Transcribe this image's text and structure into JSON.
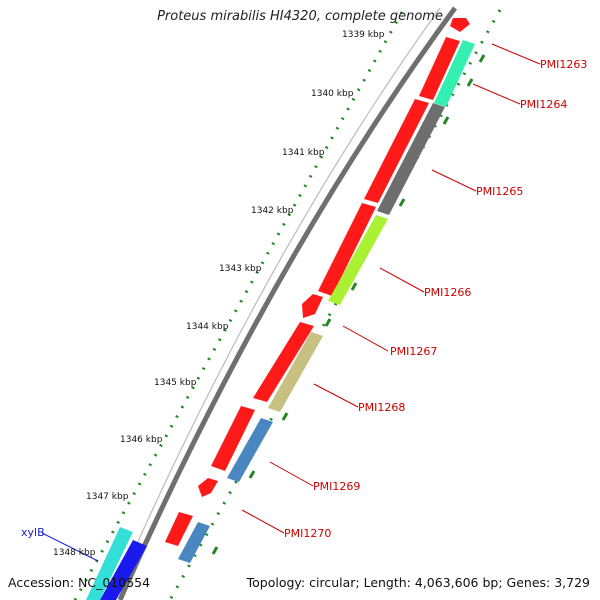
{
  "title": "Proteus mirabilis HI4320, complete genome",
  "footer": {
    "accession": "Accession: NC_010554",
    "topology": "Topology: circular; Length: 4,063,606 bp; Genes: 3,729"
  },
  "scale_ticks": [
    "1339 kbp",
    "1340 kbp",
    "1341 kbp",
    "1342 kbp",
    "1343 kbp",
    "1344 kbp",
    "1345 kbp",
    "1346 kbp",
    "1347 kbp",
    "1348 kbp"
  ],
  "gene_labels": [
    "PMI1263",
    "PMI1264",
    "PMI1265",
    "PMI1266",
    "PMI1267",
    "PMI1268",
    "PMI1269",
    "PMI1270",
    "xylB"
  ],
  "colors": {
    "cds": "#ff1a1a",
    "cog_teal": "#33f0b0",
    "cog_gray": "#6e6e6e",
    "cog_yellowgreen": "#aaf033",
    "cog_khaki": "#c8c080",
    "cog_steelblue": "#4a86c0",
    "cog_cyan": "#33e0d8",
    "cog_blue": "#1a1aee",
    "label_red": "#cc0000",
    "label_blue": "#2222cc",
    "tick_green": "#228822",
    "backbone": "#777777"
  }
}
